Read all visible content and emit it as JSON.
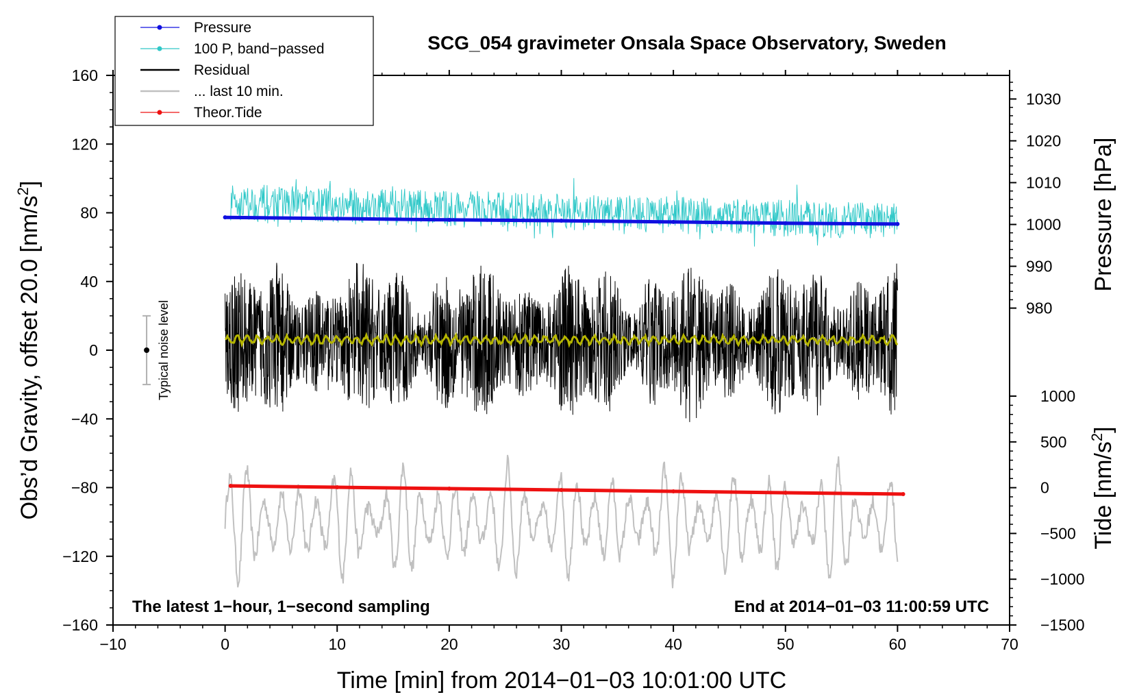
{
  "chart_data": {
    "type": "line",
    "title": "SCG_054 gravimeter Onsala Space Observatory, Sweden",
    "xlabel": "Time [min] from 2014−01−03 10:01:00 UTC",
    "ylabel_left_main": "Obs’d Gravity, offset 20.0 [nm/s",
    "ylabel_left_unit_tail": "]",
    "ylabel_right_pressure": "Pressure [hPa]",
    "ylabel_right_tide_main": "Tide [nm/s",
    "ylabel_right_tide_tail": "]",
    "superscript": "2",
    "xlim": [
      -10,
      70
    ],
    "ylim_left": [
      -160,
      160
    ],
    "x_ticks": [
      "−10",
      "0",
      "10",
      "20",
      "30",
      "40",
      "50",
      "60",
      "70"
    ],
    "x_tick_values": [
      -10,
      0,
      10,
      20,
      30,
      40,
      50,
      60,
      70
    ],
    "y_ticks_left": [
      "160",
      "120",
      "80",
      "40",
      "0",
      "−40",
      "−80",
      "−120",
      "−160"
    ],
    "y_tick_values_left": [
      160,
      120,
      80,
      40,
      0,
      -40,
      -80,
      -120,
      -160
    ],
    "pressure_axis": {
      "ticks": [
        "1030",
        "1020",
        "1010",
        "1000",
        "990",
        "980"
      ],
      "tick_values": [
        1030,
        1020,
        1010,
        1000,
        990,
        980
      ],
      "mapping_hpa_to_left": [
        [
          1030,
          146.25
        ],
        [
          980,
          24.5
        ]
      ]
    },
    "tide_axis": {
      "ticks": [
        "1000",
        "500",
        "0",
        "−500",
        "−1000",
        "−1500"
      ],
      "tick_values": [
        1000,
        500,
        0,
        -500,
        -1000,
        -1500
      ],
      "mapping_nms2_to_left": [
        [
          1000,
          -26.75
        ],
        [
          -1500,
          -160
        ]
      ]
    },
    "legend": [
      {
        "label": "Pressure",
        "color": "#1010e0",
        "marker": true
      },
      {
        "label": "100 P, band−passed",
        "color": "#30c8c8",
        "marker": true
      },
      {
        "label": "Residual",
        "color": "#000000",
        "marker": false
      },
      {
        "label": "... last 10 min.",
        "color": "#c0c0c0",
        "marker": false
      },
      {
        "label": "Theor.Tide",
        "color": "#ee1111",
        "marker": true
      }
    ],
    "series": [
      {
        "name": "Pressure",
        "axis": "pressure",
        "color": "#1010e0",
        "x": [
          0,
          10,
          20,
          30,
          40,
          50,
          60
        ],
        "values": [
          1001.7,
          1001.4,
          1001.1,
          1000.9,
          1000.6,
          1000.3,
          1000.1
        ]
      },
      {
        "name": "100 P, band-passed",
        "axis": "left",
        "color": "#30c8c8",
        "x_range": [
          0.5,
          60
        ],
        "center": 86,
        "center_end": 75,
        "amplitude": 12
      },
      {
        "name": "Residual",
        "axis": "left",
        "color": "#000000",
        "x_range": [
          0,
          60
        ],
        "center": 5,
        "amplitude": 38
      },
      {
        "name": "Residual smoothed",
        "axis": "left",
        "color": "#b5b500",
        "x_range": [
          0,
          60
        ],
        "center": 6,
        "amplitude": 2
      },
      {
        "name": "... last 10 min.",
        "axis": "left",
        "color": "#c0c0c0",
        "x_range": [
          0,
          60
        ],
        "center": -100,
        "amplitude": 32
      },
      {
        "name": "Theor.Tide",
        "axis": "tide",
        "color": "#ee1111",
        "x": [
          0.5,
          10,
          20,
          30,
          40,
          50,
          60.5
        ],
        "values": [
          20,
          5,
          -10,
          -25,
          -40,
          -55,
          -70
        ]
      }
    ],
    "noise_bar": {
      "x": -7,
      "center": 0,
      "low": -20,
      "high": 20
    }
  },
  "annotations": {
    "bottom_left": "The latest 1−hour, 1−second sampling",
    "bottom_right": "End at 2014−01−03 11:00:59 UTC",
    "noise_label": "Typical noise level"
  }
}
